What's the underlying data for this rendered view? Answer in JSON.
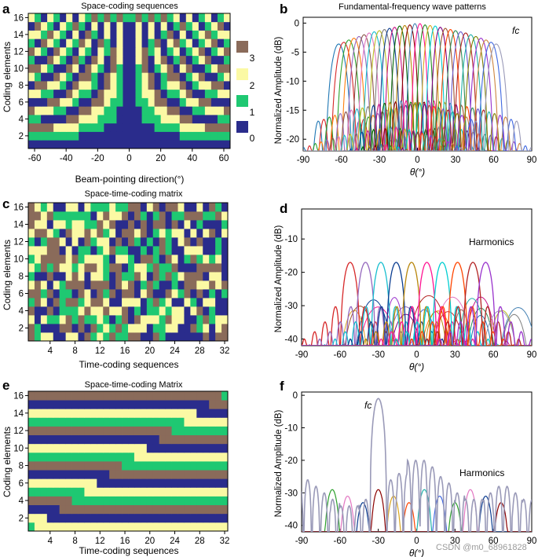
{
  "figure": {
    "watermark": "CSDN @m0_68961828",
    "palette": {
      "code0": "#2a2c8c",
      "code1": "#1fc872",
      "code2": "#fbf9a4",
      "code3": "#8a6b5a"
    }
  },
  "chart_data": [
    {
      "panel": "a",
      "type": "heatmap",
      "title": "Space-coding sequences",
      "xlabel": "Beam-pointing direction(°)",
      "ylabel": "Coding elements",
      "x_range": [
        -64,
        64
      ],
      "x_ticks": [
        "-60",
        "-40",
        "-20",
        "0",
        "20",
        "40",
        "60"
      ],
      "y_range": [
        0.5,
        16.5
      ],
      "y_ticks": [
        "2",
        "4",
        "6",
        "8",
        "10",
        "12",
        "14",
        "16"
      ],
      "legend": [
        {
          "label": "3",
          "color": "#8a6b5a"
        },
        {
          "label": "2",
          "color": "#fbf9a4"
        },
        {
          "label": "1",
          "color": "#1fc872"
        },
        {
          "label": "0",
          "color": "#2a2c8c"
        }
      ],
      "note": "cell code = floor(4*(element-1)*|sin(angle)|/2) mod 4; columns every 4°"
    },
    {
      "panel": "b",
      "type": "line",
      "title": "Fundamental-frequency wave patterns",
      "xlabel": "θ(°)",
      "ylabel": "Normalized Amplitude (dB)",
      "xlim": [
        -90,
        90
      ],
      "ylim": [
        -22,
        1
      ],
      "x_ticks": [
        "-90",
        "-60",
        "-30",
        "0",
        "30",
        "60",
        "90"
      ],
      "y_ticks": [
        "0",
        "-5",
        "-10",
        "-15",
        "-20"
      ],
      "annotations": [
        "fc"
      ],
      "series": {
        "beam_peaks_deg": [
          -62,
          -58,
          -54,
          -50,
          -46,
          -42,
          -38,
          -34,
          -30,
          -26,
          -22,
          -18,
          -14,
          -10,
          -6,
          -2,
          2,
          6,
          10,
          14,
          18,
          22,
          26,
          30,
          34,
          38,
          42,
          46,
          50,
          54,
          58,
          62
        ],
        "peak_level_db": [
          -3.6,
          -3.3,
          -2.9,
          -2.6,
          -2.3,
          -2.0,
          -1.7,
          -1.5,
          -1.3,
          -1.1,
          -0.9,
          -0.7,
          -0.5,
          -0.4,
          -0.3,
          -0.1,
          -0.1,
          -0.3,
          -0.4,
          -0.5,
          -0.7,
          -0.9,
          -1.1,
          -1.3,
          -1.5,
          -1.7,
          -2.0,
          -2.3,
          -2.6,
          -2.9,
          -3.3,
          -3.6
        ]
      }
    },
    {
      "panel": "c",
      "type": "heatmap",
      "title": "Space-time-coding matrix",
      "xlabel": "Time-coding sequences",
      "ylabel": "Coding elements",
      "x_range": [
        0.5,
        32.5
      ],
      "x_ticks": [
        "4",
        "8",
        "12",
        "16",
        "20",
        "24",
        "28",
        "32"
      ],
      "y_range": [
        0.5,
        16.5
      ],
      "y_ticks": [
        "2",
        "4",
        "6",
        "8",
        "10",
        "12",
        "14",
        "16"
      ],
      "note": "pseudo-random 4-level code matrix"
    },
    {
      "panel": "d",
      "type": "line",
      "title": "",
      "xlabel": "θ(°)",
      "ylabel": "Normalized Amplitude (dB)",
      "xlim": [
        -90,
        90
      ],
      "ylim": [
        -42,
        -1
      ],
      "x_ticks": [
        "-90",
        "-60",
        "-30",
        "0",
        "30",
        "60",
        "90"
      ],
      "y_ticks": [
        "-10",
        "-20",
        "-30",
        "-40"
      ],
      "annotations": [
        "Harmonics"
      ],
      "series": {
        "main_lobe_peaks_deg": [
          -52,
          -40,
          -28,
          -16,
          -4,
          8,
          20,
          32,
          44,
          54
        ],
        "main_lobe_level_db": -17,
        "floor_lobes_level_db": -27
      }
    },
    {
      "panel": "e",
      "type": "heatmap",
      "title": "Space-time-coding Matrix",
      "xlabel": "Time-coding sequences",
      "ylabel": "Coding elements",
      "x_range": [
        0.5,
        32.5
      ],
      "x_ticks": [
        "4",
        "8",
        "12",
        "16",
        "20",
        "24",
        "28",
        "32"
      ],
      "y_range": [
        0.5,
        16.5
      ],
      "y_ticks": [
        "2",
        "4",
        "6",
        "8",
        "10",
        "12",
        "14",
        "16"
      ],
      "note": "row n switches code at time step 2n-1"
    },
    {
      "panel": "f",
      "type": "line",
      "title": "",
      "xlabel": "θ(°)",
      "ylabel": "Normalized Amplitude (dB)",
      "xlim": [
        -90,
        90
      ],
      "ylim": [
        -42,
        1
      ],
      "x_ticks": [
        "-90",
        "-60",
        "-30",
        "0",
        "30",
        "60",
        "90"
      ],
      "y_ticks": [
        "0",
        "-10",
        "-20",
        "-30",
        "-40"
      ],
      "annotations": [
        "fc",
        "Harmonics"
      ],
      "series": {
        "fc_peak_deg": -30,
        "fc_peak_db": -1,
        "sidelobe_peaks_db": [
          -26,
          -28,
          -30,
          -32,
          -34,
          -34,
          -32,
          -30,
          -28,
          -26,
          -24,
          -20,
          -20,
          -22,
          -25,
          -27,
          -30,
          -32,
          -32,
          -30,
          -28,
          -28,
          -30,
          -32
        ],
        "harmonic_peaks_deg": [
          -66,
          -54,
          -42,
          -30,
          -18,
          -6,
          6,
          18,
          30,
          42,
          54,
          66
        ],
        "harmonic_peak_db": -29
      }
    }
  ]
}
